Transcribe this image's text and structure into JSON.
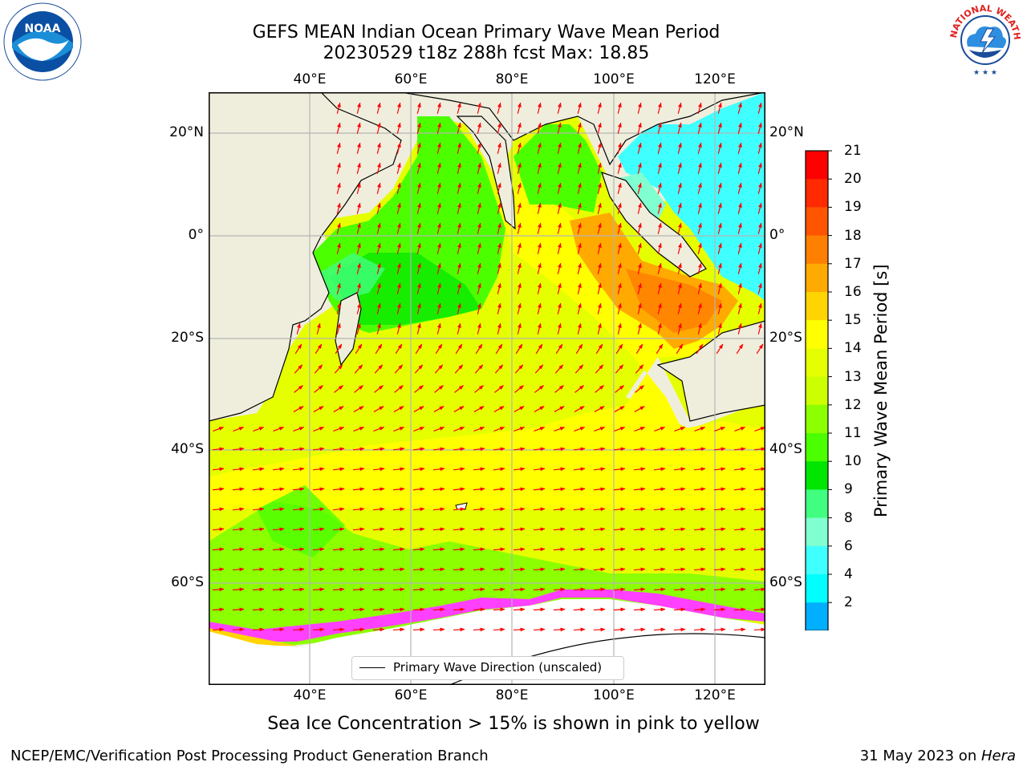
{
  "header": {
    "title_line1": "GEFS MEAN Indian Ocean Primary Wave Mean Period",
    "title_line2": "20230529 t18z 288h fcst   Max: 18.85"
  },
  "logos": {
    "left_name": "NOAA",
    "left_ring_text": "NATIONAL OCEANIC AND ATMOSPHERIC ADMINISTRATION · U.S. DEPARTMENT OF COMMERCE",
    "right_ring_text": "NATIONAL WEATHER SERVICE"
  },
  "map": {
    "lon_ticks": [
      "40°E",
      "60°E",
      "80°E",
      "100°E",
      "120°E"
    ],
    "lat_ticks": [
      "20°N",
      "0°",
      "20°S",
      "40°S",
      "60°S"
    ],
    "legend_label": "Primary Wave Direction (unscaled)",
    "caption": "Sea Ice Concentration > 15% is shown in pink to yellow",
    "colors": {
      "land": "#efeedd",
      "ice": "#ffffff",
      "arrow": "#ff0000",
      "grid": "#b4b4b4"
    }
  },
  "colorbar": {
    "title": "Primary Wave Mean Period [s]",
    "ticks": [
      "21",
      "20",
      "19",
      "18",
      "17",
      "16",
      "15",
      "14",
      "13",
      "12",
      "11",
      "10",
      "9",
      "8",
      "6",
      "4",
      "2"
    ],
    "colors": [
      "#ff0000",
      "#ff2a00",
      "#ff5500",
      "#ff8000",
      "#ffaa00",
      "#ffd400",
      "#ffff00",
      "#e6ff00",
      "#ccff00",
      "#8cff00",
      "#4cff00",
      "#00e600",
      "#40ff80",
      "#80ffd0",
      "#40ffff",
      "#00ffff",
      "#00b0ff",
      "#0040ff"
    ]
  },
  "footer": {
    "left": "NCEP/EMC/Verification Post Processing Product Generation Branch",
    "right_date": "31 May 2023 on ",
    "right_system": "Hera"
  }
}
